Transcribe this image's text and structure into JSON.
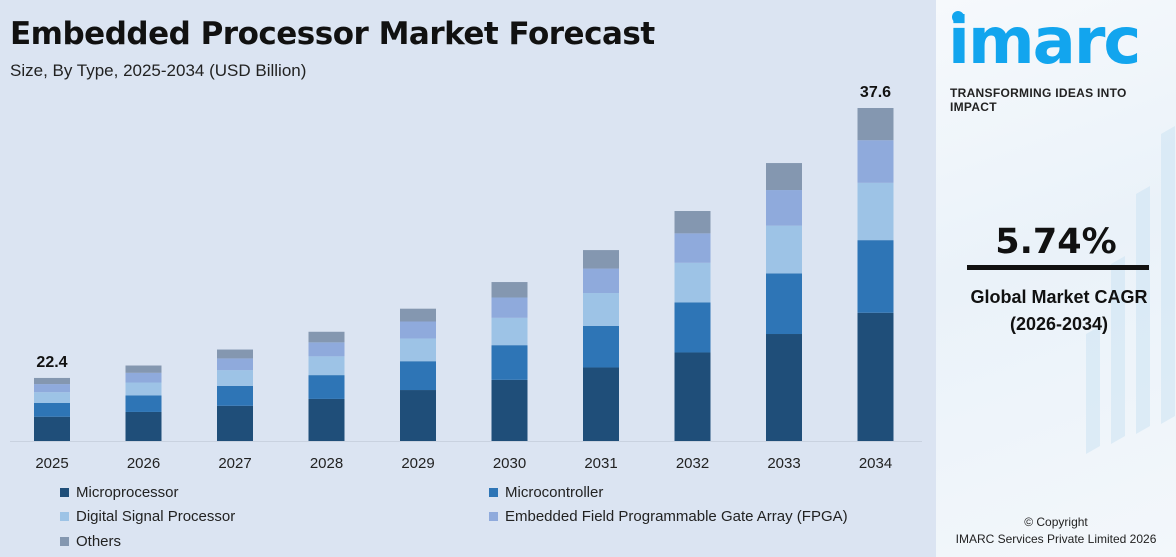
{
  "header": {
    "title": "Embedded Processor Market Forecast",
    "subtitle": "Size, By Type, 2025-2034 (USD Billion)"
  },
  "chart_data": {
    "type": "bar",
    "stacked": true,
    "title": "Embedded Processor Market Forecast",
    "subtitle": "Size, By Type, 2025-2034 (USD Billion)",
    "xlabel": "",
    "ylabel": "USD Billion",
    "categories": [
      "2025",
      "2026",
      "2027",
      "2028",
      "2029",
      "2030",
      "2031",
      "2032",
      "2033",
      "2034"
    ],
    "series": [
      {
        "name": "Microprocessor",
        "color": "#1f4e79",
        "values": [
          8.62,
          8.89,
          9.24,
          9.63,
          10.13,
          10.7,
          11.4,
          12.24,
          13.28,
          14.48
        ]
      },
      {
        "name": "Microcontroller",
        "color": "#2e75b6",
        "values": [
          4.88,
          5.04,
          5.23,
          5.45,
          5.73,
          6.06,
          6.45,
          6.93,
          7.52,
          8.2
        ]
      },
      {
        "name": "Digital Signal Processor",
        "color": "#9dc3e6",
        "values": [
          3.85,
          3.97,
          4.13,
          4.3,
          4.52,
          4.78,
          5.09,
          5.47,
          5.93,
          6.47
        ]
      },
      {
        "name": "Embedded Field Programmable Gate Array (FPGA)",
        "color": "#8faadc",
        "values": [
          2.87,
          2.96,
          3.07,
          3.2,
          3.37,
          3.56,
          3.79,
          4.07,
          4.42,
          4.81
        ]
      },
      {
        "name": "Others",
        "color": "#8497b0",
        "values": [
          2.18,
          2.24,
          2.33,
          2.42,
          2.55,
          2.7,
          2.87,
          3.09,
          3.35,
          3.64
        ]
      }
    ],
    "data_labels": [
      {
        "category": "2025",
        "label": "22.4"
      },
      {
        "category": "2034",
        "label": "37.6"
      }
    ],
    "grid": false,
    "legend_position": "bottom"
  },
  "sidebar": {
    "logo_text": "imarc",
    "tagline": "TRANSFORMING IDEAS INTO IMPACT",
    "cagr_value": "5.74%",
    "cagr_label": "Global Market CAGR",
    "cagr_period": "(2026-2034)",
    "copyright_line1": "© Copyright",
    "copyright_line2": "IMARC Services Private Limited 2026"
  }
}
